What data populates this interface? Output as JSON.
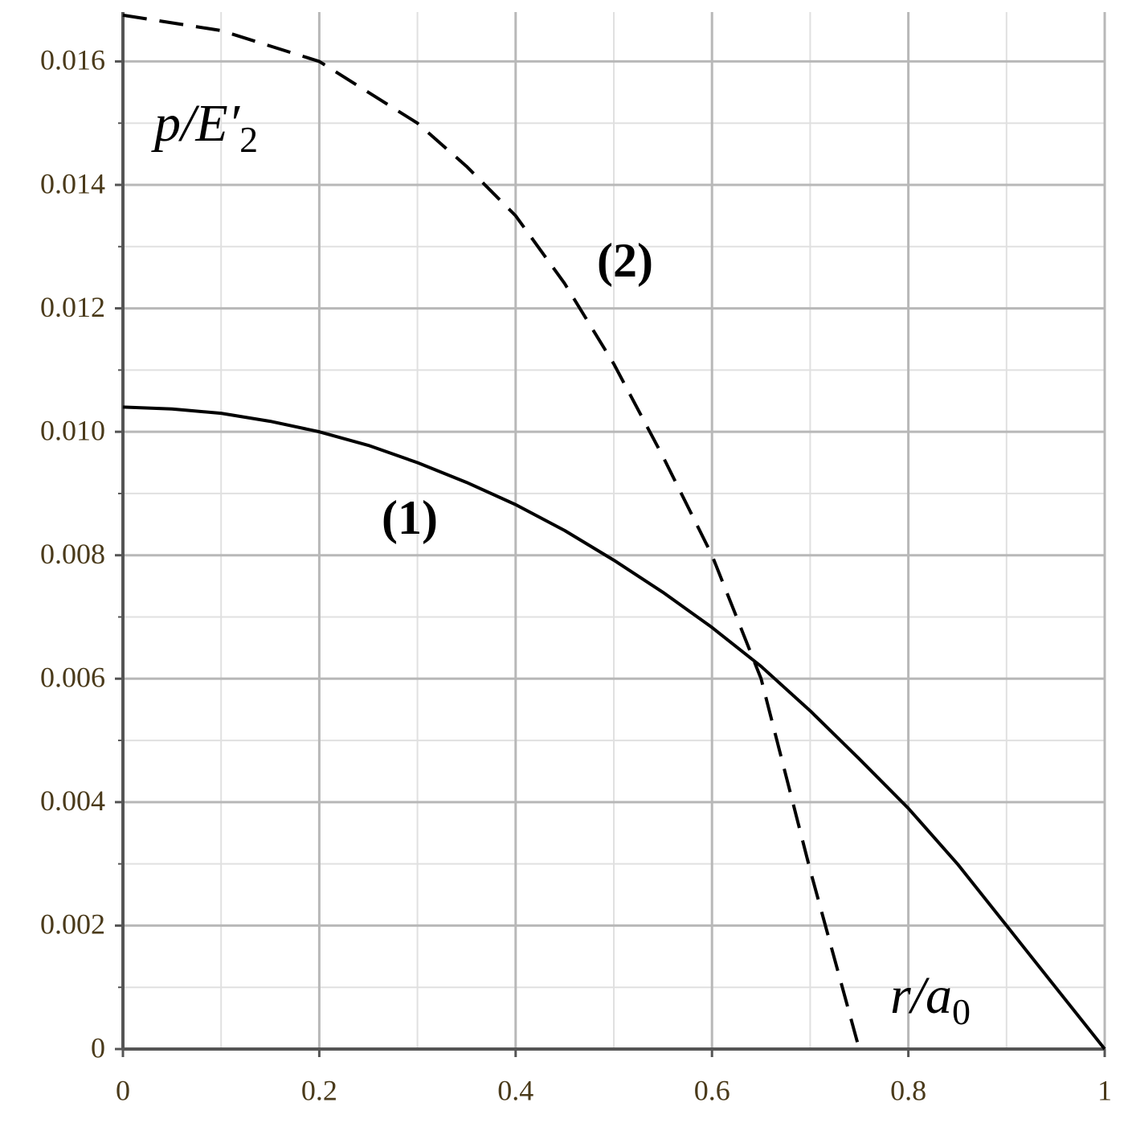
{
  "chart_data": {
    "type": "line",
    "xlabel": {
      "main": "r/a",
      "sub": "0"
    },
    "ylabel": {
      "main": "p/E′",
      "sub": "2"
    },
    "series": [
      {
        "name": "(1)",
        "color": "#000000",
        "style": "solid",
        "x": [
          0,
          0.05,
          0.1,
          0.15,
          0.2,
          0.25,
          0.3,
          0.35,
          0.4,
          0.45,
          0.5,
          0.55,
          0.6,
          0.65,
          0.7,
          0.75,
          0.8,
          0.85,
          0.9,
          0.95,
          1
        ],
        "values": [
          0.0104,
          0.01037,
          0.0103,
          0.01017,
          0.01,
          0.00978,
          0.0095,
          0.00918,
          0.00882,
          0.0084,
          0.00792,
          0.0074,
          0.00683,
          0.0062,
          0.00548,
          0.0047,
          0.0039,
          0.003,
          0.002,
          0.001,
          0
        ]
      },
      {
        "name": "(2)",
        "color": "#000000",
        "style": "dashed",
        "x": [
          0,
          0.1,
          0.2,
          0.3,
          0.35,
          0.4,
          0.45,
          0.5,
          0.55,
          0.6,
          0.65,
          0.7,
          0.75
        ],
        "values": [
          0.01675,
          0.0165,
          0.016,
          0.015,
          0.0143,
          0.0135,
          0.0124,
          0.0111,
          0.0096,
          0.008,
          0.006,
          0.0029,
          0
        ]
      }
    ],
    "xlim": [
      0,
      1
    ],
    "ylim": [
      0,
      0.0168
    ],
    "xticks": [
      0,
      0.2,
      0.4,
      0.6,
      0.8,
      1
    ],
    "yticks": [
      0,
      0.002,
      0.004,
      0.006,
      0.008,
      {
        "value": 0.01,
        "label": "0.010"
      },
      0.012,
      0.014,
      0.016
    ],
    "x_minor_ticks": [
      0.1,
      0.3,
      0.5,
      0.7,
      0.9
    ],
    "y_minor_ticks": [
      0.001,
      0.003,
      0.005,
      0.007,
      0.009,
      0.011,
      0.013,
      0.015
    ],
    "grid": true
  }
}
